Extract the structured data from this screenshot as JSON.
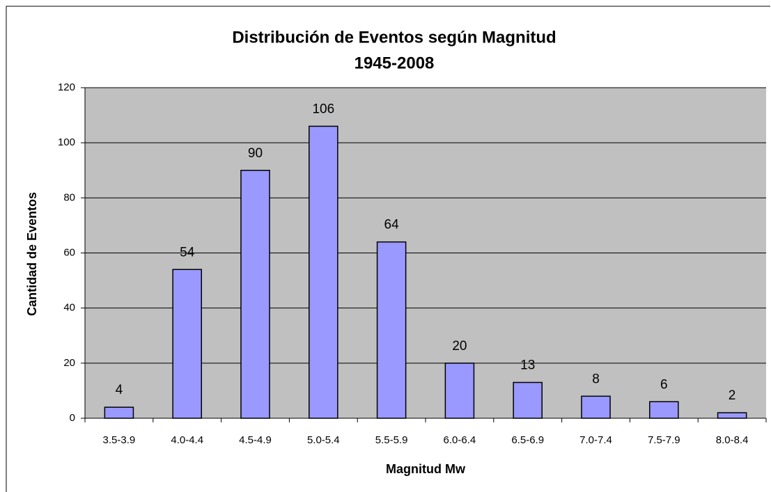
{
  "chart_data": {
    "type": "bar",
    "title": [
      "Distribución de Eventos según Magnitud",
      "1945-2008"
    ],
    "xlabel": "Magnitud Mw",
    "ylabel": "Cantidad de Eventos",
    "categories": [
      "3.5-3.9",
      "4.0-4.4",
      "4.5-4.9",
      "5.0-5.4",
      "5.5-5.9",
      "6.0-6.4",
      "6.5-6.9",
      "7.0-7.4",
      "7.5-7.9",
      "8.0-8.4"
    ],
    "values": [
      4,
      54,
      90,
      106,
      64,
      20,
      13,
      8,
      6,
      2
    ],
    "color": "#9999ff",
    "ylim": [
      0,
      120
    ],
    "yticks": [
      0,
      20,
      40,
      60,
      80,
      100,
      120
    ],
    "grid": true
  }
}
